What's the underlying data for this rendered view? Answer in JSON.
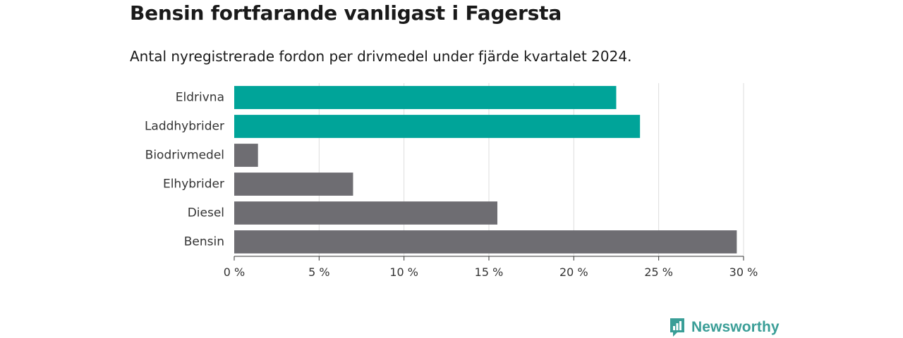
{
  "header": {
    "title": "Bensin fortfarande vanligast i Fagersta",
    "subtitle": "Antal nyregistrerade fordon per drivmedel under fjärde kvartalet 2024."
  },
  "brand": {
    "name": "Newsworthy",
    "icon": "newsworthy-logo-icon",
    "color": "#3a9e97"
  },
  "chart_data": {
    "type": "bar",
    "orientation": "horizontal",
    "title": "Bensin fortfarande vanligast i Fagersta",
    "subtitle": "Antal nyregistrerade fordon per drivmedel under fjärde kvartalet 2024.",
    "xlabel": "",
    "ylabel": "",
    "xlim": [
      0,
      30
    ],
    "x_ticks": [
      0,
      5,
      10,
      15,
      20,
      25,
      30
    ],
    "x_tick_labels": [
      "0 %",
      "5 %",
      "10 %",
      "15 %",
      "20 %",
      "25 %",
      "30 %"
    ],
    "grid": "vertical",
    "legend": "none",
    "categories": [
      "Eldrivna",
      "Laddhybrider",
      "Biodrivmedel",
      "Elhybrider",
      "Diesel",
      "Bensin"
    ],
    "values": [
      22.5,
      23.9,
      1.4,
      7.0,
      15.5,
      29.6
    ],
    "colors": [
      "#00a499",
      "#00a499",
      "#6e6d72",
      "#6e6d72",
      "#6e6d72",
      "#6e6d72"
    ],
    "gridline_color": "#dddddd",
    "axis_color": "#333333"
  }
}
